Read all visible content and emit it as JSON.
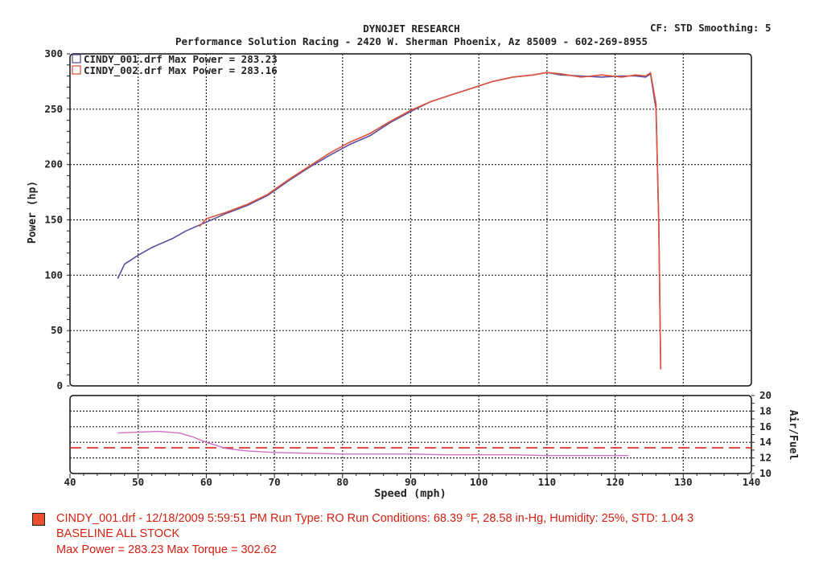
{
  "header": {
    "title": "DYNOJET RESEARCH",
    "subtitle": "Performance Solution Racing - 2420 W. Sherman Phoenix, Az 85009 - 602-269-8955",
    "settings": "CF: STD  Smoothing: 5"
  },
  "colors": {
    "run1": "#5a4fa0",
    "run2": "#e0533a",
    "afr_target": "#d9362a",
    "afr_trace": "#d070c8",
    "footer_text": "#d32012",
    "swatch": "#e8502e"
  },
  "chart_data": [
    {
      "type": "line",
      "ylabel": "Power (hp)",
      "ylim": [
        0,
        300
      ],
      "yticks": [
        0,
        50,
        100,
        150,
        200,
        250,
        300
      ],
      "xlim": [
        40,
        140
      ],
      "grid": true,
      "legend": {
        "placement": "top-left"
      },
      "series": [
        {
          "name": "CINDY_001.drf Max Power = 283.23",
          "x": [
            47,
            48,
            50,
            52,
            55,
            57,
            60,
            63,
            66,
            69,
            72,
            75,
            78,
            81,
            84,
            87,
            90,
            93,
            96,
            99,
            102,
            105,
            108,
            110,
            112,
            115,
            118,
            121,
            123,
            124.5,
            125.2,
            126,
            126.4,
            126.7
          ],
          "values": [
            97,
            110,
            118,
            125,
            133,
            140,
            148,
            156,
            163,
            172,
            185,
            197,
            208,
            218,
            226,
            238,
            248,
            257,
            263,
            269,
            275,
            279,
            281,
            283.23,
            281,
            280,
            279,
            280,
            280,
            279,
            282,
            250,
            150,
            15
          ]
        },
        {
          "name": "CINDY_002.drf Max Power = 283.16",
          "x": [
            59,
            60,
            63,
            66,
            69,
            72,
            75,
            78,
            81,
            84,
            87,
            90,
            93,
            96,
            99,
            102,
            105,
            108,
            110,
            112,
            115,
            118,
            121,
            123,
            124.5,
            125.2,
            126,
            126.4,
            126.7
          ],
          "values": [
            144,
            151,
            157,
            164,
            173,
            186,
            198,
            210,
            220,
            228,
            239,
            249,
            257,
            263,
            269,
            275,
            279,
            281,
            283.16,
            282,
            279,
            281,
            279,
            281,
            280,
            283,
            255,
            150,
            15
          ]
        }
      ]
    },
    {
      "type": "line",
      "xlabel": "Speed (mph)",
      "ylabel": "Air/Fuel",
      "ylim": [
        10,
        20
      ],
      "yticks": [
        10,
        12,
        14,
        16,
        18,
        20
      ],
      "xlim": [
        40,
        140
      ],
      "xticks": [
        40,
        50,
        60,
        70,
        80,
        90,
        100,
        110,
        120,
        130,
        140
      ],
      "grid": true,
      "series": [
        {
          "x": [
            40,
            140
          ],
          "values": [
            13.3,
            13.3
          ]
        },
        {
          "x": [
            47,
            50,
            53,
            56,
            58,
            60,
            63,
            66,
            70,
            75,
            80,
            85,
            90,
            95,
            100,
            105,
            110,
            115,
            120,
            122
          ],
          "values": [
            15.2,
            15.3,
            15.4,
            15.2,
            14.7,
            14.0,
            13.2,
            12.9,
            12.7,
            12.6,
            12.5,
            12.5,
            12.5,
            12.4,
            12.4,
            12.4,
            12.3,
            12.3,
            12.3,
            12.3
          ]
        }
      ]
    }
  ],
  "footer": {
    "run_info": "CINDY_001.drf - 12/18/2009 5:59:51 PM  Run Type: RO  Run Conditions: 68.39 °F, 28.58 in-Hg,  Humidity:  25%, STD: 1.04 3",
    "label": "BASELINE ALL STOCK",
    "summary": "Max Power = 283.23  Max Torque = 302.62"
  }
}
